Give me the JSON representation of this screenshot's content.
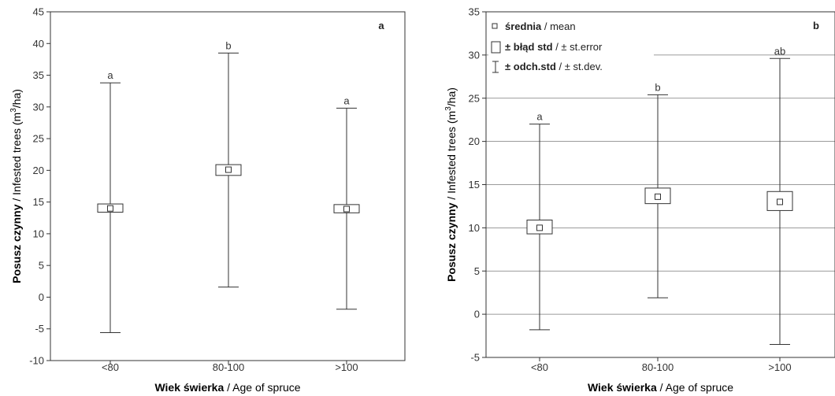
{
  "chart_data": [
    {
      "type": "boxplot",
      "panel_label": "a",
      "categories": [
        "<80",
        "80-100",
        ">100"
      ],
      "ylim": [
        -10,
        45
      ],
      "yticks": [
        -10,
        -5,
        0,
        5,
        10,
        15,
        20,
        25,
        30,
        35,
        40,
        45
      ],
      "ylabel": {
        "bold": "Posusz czynny",
        "rest": " / Infested trees (m",
        "sup": "3",
        "end": "/ha)"
      },
      "xlabel": {
        "bold": "Wiek świerka",
        "rest": " / Age of spruce"
      },
      "grid": false,
      "groups": [
        {
          "category": "<80",
          "mean": 14.0,
          "se_low": 13.4,
          "se_high": 14.7,
          "sd_low": -5.6,
          "sd_high": 33.8,
          "letter": "a"
        },
        {
          "category": "80-100",
          "mean": 20.1,
          "se_low": 19.2,
          "se_high": 20.9,
          "sd_low": 1.6,
          "sd_high": 38.5,
          "letter": "b"
        },
        {
          "category": ">100",
          "mean": 13.9,
          "se_low": 13.3,
          "se_high": 14.6,
          "sd_low": -1.9,
          "sd_high": 29.8,
          "letter": "a"
        }
      ]
    },
    {
      "type": "boxplot",
      "panel_label": "b",
      "categories": [
        "<80",
        "80-100",
        ">100"
      ],
      "ylim": [
        -5,
        35
      ],
      "yticks": [
        -5,
        0,
        5,
        10,
        15,
        20,
        25,
        30,
        35
      ],
      "ylabel": {
        "bold": "Posusz czynny",
        "rest": " / Infested trees (m",
        "sup": "3",
        "end": "/ha)"
      },
      "xlabel": {
        "bold": "Wiek świerka",
        "rest": " / Age of spruce"
      },
      "grid": true,
      "legend": {
        "position": "top-left",
        "items": [
          {
            "symbol": "mean",
            "bold": "średnia",
            "rest": " / mean"
          },
          {
            "symbol": "se",
            "bold": "± błąd std",
            "rest": " / ± st.error"
          },
          {
            "symbol": "sd",
            "bold": "± odch.std",
            "rest": " / ± st.dev."
          }
        ]
      },
      "groups": [
        {
          "category": "<80",
          "mean": 10.0,
          "se_low": 9.3,
          "se_high": 10.9,
          "sd_low": -1.8,
          "sd_high": 22.0,
          "letter": "a"
        },
        {
          "category": "80-100",
          "mean": 13.6,
          "se_low": 12.8,
          "se_high": 14.6,
          "sd_low": 1.9,
          "sd_high": 25.4,
          "letter": "b"
        },
        {
          "category": ">100",
          "mean": 13.0,
          "se_low": 12.0,
          "se_high": 14.2,
          "sd_low": -3.5,
          "sd_high": 29.6,
          "letter": "ab"
        }
      ]
    }
  ]
}
